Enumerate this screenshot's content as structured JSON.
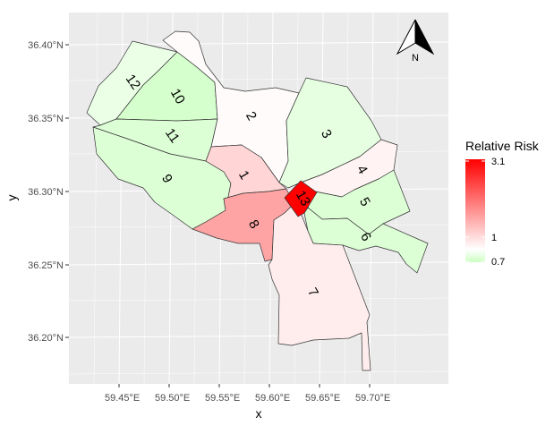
{
  "chart_data": {
    "type": "choropleth",
    "xlabel": "x",
    "ylabel": "y",
    "x_ticks": [
      "59.45°E",
      "59.50°E",
      "59.55°E",
      "59.60°E",
      "59.65°E",
      "59.70°E"
    ],
    "y_ticks": [
      "36.40°N",
      "36.35°N",
      "36.30°N",
      "36.25°N",
      "36.20°N"
    ],
    "legend": {
      "title": "Relative Risk",
      "max_label": "3.1",
      "mid_label": "1",
      "min_label": "0.7",
      "low_color": "#ccffc2",
      "mid_color": "#ffffff",
      "high_color": "#ff0000",
      "position": "right"
    },
    "regions": [
      {
        "id": "1",
        "label": "1",
        "rr": 1.35
      },
      {
        "id": "2",
        "label": "2",
        "rr": 1.03
      },
      {
        "id": "3",
        "label": "3",
        "rr": 0.85
      },
      {
        "id": "4",
        "label": "4",
        "rr": 1.1
      },
      {
        "id": "5",
        "label": "5",
        "rr": 0.8
      },
      {
        "id": "6",
        "label": "6",
        "rr": 0.8
      },
      {
        "id": "7",
        "label": "7",
        "rr": 1.15
      },
      {
        "id": "8",
        "label": "8",
        "rr": 1.75
      },
      {
        "id": "9",
        "label": "9",
        "rr": 0.8
      },
      {
        "id": "10",
        "label": "10",
        "rr": 0.75
      },
      {
        "id": "11",
        "label": "11",
        "rr": 0.8
      },
      {
        "id": "12",
        "label": "12",
        "rr": 0.88
      },
      {
        "id": "13",
        "label": "13",
        "rr": 3.1
      }
    ],
    "north_arrow": {
      "label": "N"
    },
    "grid": true
  }
}
